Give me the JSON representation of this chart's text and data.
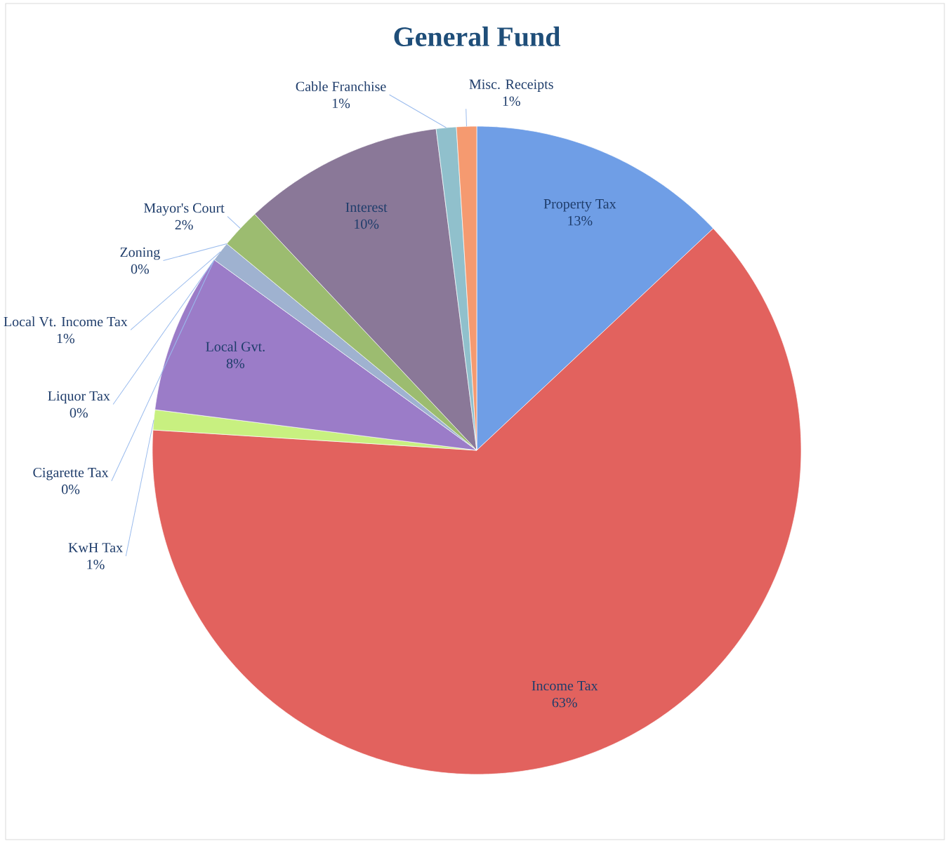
{
  "chart_data": {
    "type": "pie",
    "title": "General Fund",
    "categories": [
      "Property Tax",
      "Income Tax",
      "KwH Tax",
      "Local Gvt.",
      "Cigarette Tax",
      "Liquor Tax",
      "Local Vt. Income Tax",
      "Zoning",
      "Mayor's Court",
      "Interest",
      "Cable Franchise",
      "Misc. Receipts"
    ],
    "values": [
      13,
      63,
      1,
      8,
      0,
      0,
      1,
      0,
      2,
      10,
      1,
      1
    ],
    "value_labels": [
      "13%",
      "63%",
      "1%",
      "8%",
      "0%",
      "0%",
      "1%",
      "0%",
      "2%",
      "10%",
      "1%",
      "1%"
    ],
    "colors": [
      "#6f9ee6",
      "#e2625e",
      "#c8f080",
      "#9b7cc8",
      "#f0d060",
      "#8fa5c8",
      "#9fb2d0",
      "#e89a90",
      "#9cbc70",
      "#8a7898",
      "#90c0cc",
      "#f59a70"
    ]
  }
}
